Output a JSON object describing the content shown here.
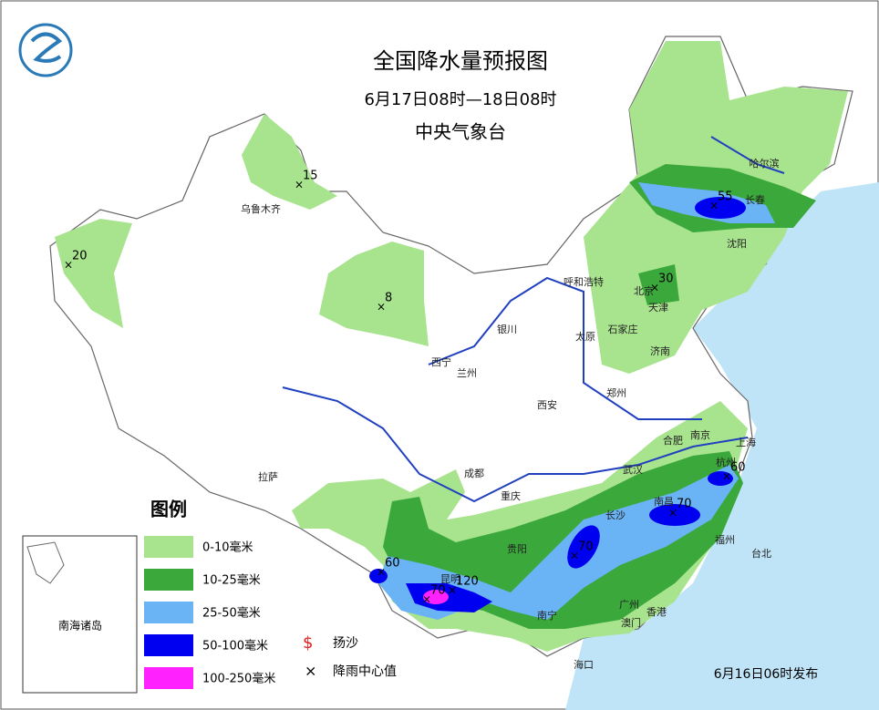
{
  "header": {
    "title": "全国降水量预报图",
    "subtitle": "6月17日08时—18日08时",
    "issuer": "中央气象台"
  },
  "legend": {
    "title": "图例",
    "items": [
      "0-10毫米",
      "10-25毫米",
      "25-50毫米",
      "50-100毫米",
      "100-250毫米"
    ],
    "sand": "扬沙",
    "center": "降雨中心值"
  },
  "inset": {
    "label": "南海诸岛"
  },
  "cities": [
    "哈尔滨",
    "长春",
    "沈阳",
    "乌鲁木齐",
    "呼和浩特",
    "北京",
    "天津",
    "石家庄",
    "太原",
    "济南",
    "银川",
    "西宁",
    "兰州",
    "西安",
    "郑州",
    "合肥",
    "南京",
    "上海",
    "杭州",
    "武汉",
    "拉萨",
    "成都",
    "重庆",
    "贵阳",
    "长沙",
    "南昌",
    "福州",
    "台北",
    "昆明",
    "南宁",
    "广州",
    "香港",
    "澳门",
    "海口"
  ],
  "rain_centers": [
    15,
    20,
    8,
    55,
    30,
    60,
    70,
    70,
    60,
    70,
    120
  ],
  "footer": "6月16日06时发布"
}
